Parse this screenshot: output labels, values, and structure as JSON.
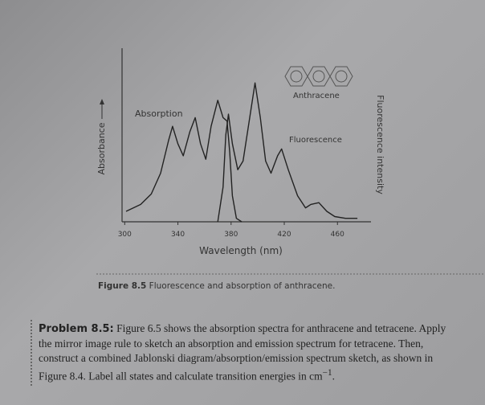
{
  "chart_data": {
    "type": "line",
    "xlabel": "Wavelength (nm)",
    "ylabel": "Absorbance",
    "y2label": "Fluorescence intensity",
    "xlim": [
      298,
      484
    ],
    "xticks": [
      300,
      340,
      380,
      420,
      460
    ],
    "ylim": [
      0,
      1
    ],
    "annotations": [
      "Absorption",
      "Fluorescence",
      "Anthracene"
    ],
    "series": [
      {
        "name": "Absorption",
        "color": "#222222",
        "x": [
          301,
          312,
          320,
          327,
          333,
          336,
          340,
          344,
          349,
          353,
          357,
          361,
          365,
          370,
          374,
          377,
          379,
          381,
          384,
          388
        ],
        "values": [
          0.06,
          0.1,
          0.16,
          0.28,
          0.47,
          0.55,
          0.45,
          0.38,
          0.52,
          0.6,
          0.45,
          0.36,
          0.55,
          0.7,
          0.6,
          0.58,
          0.4,
          0.15,
          0.02,
          0
        ]
      },
      {
        "name": "Fluorescence",
        "color": "#222222",
        "x": [
          370,
          374,
          376,
          378,
          381,
          385,
          389,
          394,
          398,
          402,
          406,
          410,
          415,
          418,
          423,
          430,
          436,
          440,
          446,
          452,
          458,
          466,
          475
        ],
        "values": [
          0,
          0.2,
          0.5,
          0.62,
          0.45,
          0.3,
          0.35,
          0.6,
          0.8,
          0.6,
          0.35,
          0.28,
          0.38,
          0.42,
          0.3,
          0.15,
          0.08,
          0.1,
          0.11,
          0.06,
          0.03,
          0.02,
          0.02
        ]
      }
    ]
  },
  "caption": {
    "label": "Figure 8.5",
    "text": "Fluorescence and absorption of anthracene."
  },
  "problem": {
    "label": "Problem 8.5:",
    "text": "Figure 6.5 shows the absorption spectra for anthracene and tetracene. Apply the mirror image rule to sketch an absorption and emission spectrum for tetracene. Then, construct a combined Jablonski diagram/absorption/emission spectrum sketch, as shown in Figure 8.4. Label all states and calculate transition energies in cm",
    "exponent": "−1",
    "end": "."
  }
}
